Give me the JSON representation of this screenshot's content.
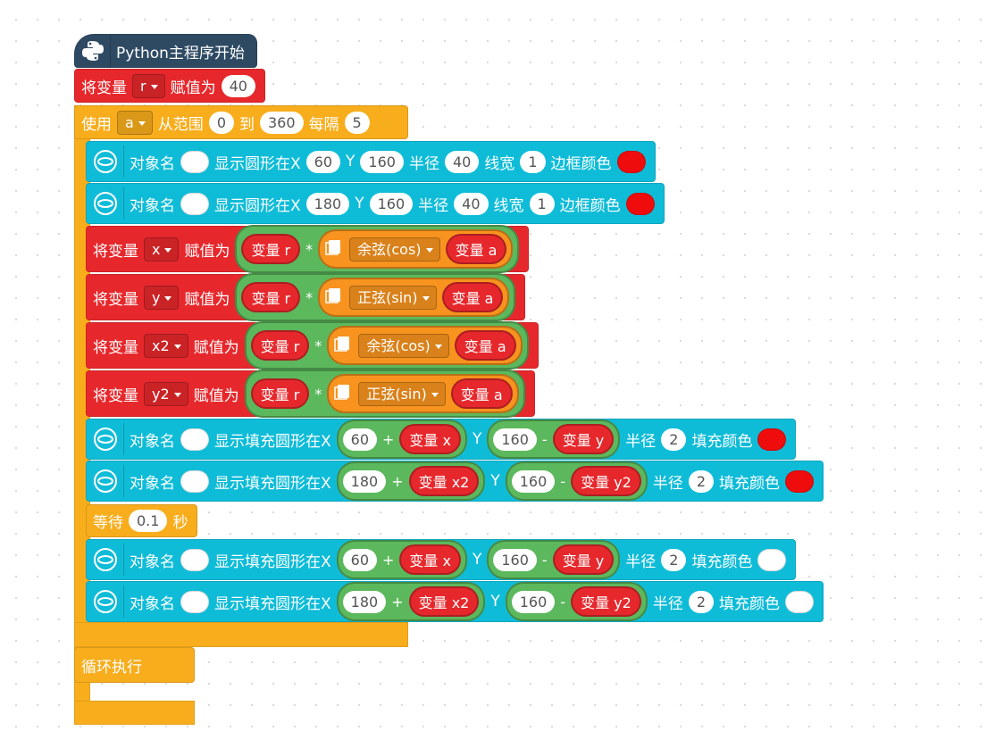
{
  "blocks": [
    {
      "color": "#2e4a63",
      "parts": [
        {
          "label": "Python主程序开始"
        }
      ]
    },
    {
      "color": "#e6282c",
      "parts": [
        {
          "label": "将变量"
        },
        {
          "dropdown": "r"
        },
        {
          "label": "赋值为"
        },
        {
          "number": 40
        }
      ]
    },
    {
      "color": "#f8ad1c",
      "parts": [
        {
          "label": "使用"
        },
        {
          "dropdown": "a"
        },
        {
          "label": "从范围"
        },
        {
          "number": 0
        },
        {
          "label": "到"
        },
        {
          "number": 360
        },
        {
          "label": "每隔"
        },
        {
          "number": 5
        }
      ]
    },
    {
      "color": "#0fbcd8",
      "parts": [
        {
          "label": "对象名"
        },
        {
          "slot": "#ffffff"
        },
        {
          "label": "显示圆形在X"
        },
        {
          "number": 60
        },
        {
          "label": "Y"
        },
        {
          "number": 160
        },
        {
          "label": "半径"
        },
        {
          "number": 40
        },
        {
          "label": "线宽"
        },
        {
          "number": 1
        },
        {
          "label": "边框颜色"
        },
        {
          "slot": "#ee0c0c"
        }
      ]
    },
    {
      "color": "#0fbcd8",
      "parts": [
        {
          "label": "对象名"
        },
        {
          "slot": "#ffffff"
        },
        {
          "label": "显示圆形在X"
        },
        {
          "number": 180
        },
        {
          "label": "Y"
        },
        {
          "number": 160
        },
        {
          "label": "半径"
        },
        {
          "number": 40
        },
        {
          "label": "线宽"
        },
        {
          "number": 1
        },
        {
          "label": "边框颜色"
        },
        {
          "slot": "#ee0c0c"
        }
      ]
    },
    {
      "color": "#e6282c",
      "parts": [
        {
          "label": "将变量"
        },
        {
          "dropdown": "x"
        },
        {
          "label": "赋值为"
        },
        {
          "reporter": {
            "color": "#5cb85c",
            "parts": [
              {
                "reporter": {
                  "color": "#e6282c",
                  "parts": [
                    {
                      "label": "变量 r"
                    }
                  ]
                }
              },
              {
                "label": "*"
              },
              {
                "reporter": {
                  "color": "#f7931e",
                  "parts": [
                    {
                      "dropdown": "余弦(cos)"
                    },
                    {
                      "reporter": {
                        "color": "#e6282c",
                        "parts": [
                          {
                            "label": "变量 a"
                          }
                        ]
                      }
                    }
                  ]
                }
              }
            ]
          }
        }
      ]
    },
    {
      "color": "#e6282c",
      "parts": [
        {
          "label": "将变量"
        },
        {
          "dropdown": "y"
        },
        {
          "label": "赋值为"
        },
        {
          "reporter": {
            "color": "#5cb85c",
            "parts": [
              {
                "reporter": {
                  "color": "#e6282c",
                  "parts": [
                    {
                      "label": "变量 r"
                    }
                  ]
                }
              },
              {
                "label": "*"
              },
              {
                "reporter": {
                  "color": "#f7931e",
                  "parts": [
                    {
                      "dropdown": "正弦(sin)"
                    },
                    {
                      "reporter": {
                        "color": "#e6282c",
                        "parts": [
                          {
                            "label": "变量 a"
                          }
                        ]
                      }
                    }
                  ]
                }
              }
            ]
          }
        }
      ]
    },
    {
      "color": "#e6282c",
      "parts": [
        {
          "label": "将变量"
        },
        {
          "dropdown": "x2"
        },
        {
          "label": "赋值为"
        },
        {
          "reporter": {
            "color": "#5cb85c",
            "parts": [
              {
                "reporter": {
                  "color": "#e6282c",
                  "parts": [
                    {
                      "label": "变量 r"
                    }
                  ]
                }
              },
              {
                "label": "*"
              },
              {
                "reporter": {
                  "color": "#f7931e",
                  "parts": [
                    {
                      "dropdown": "余弦(cos)"
                    },
                    {
                      "reporter": {
                        "color": "#e6282c",
                        "parts": [
                          {
                            "label": "变量 a"
                          }
                        ]
                      }
                    }
                  ]
                }
              }
            ]
          }
        }
      ]
    },
    {
      "color": "#e6282c",
      "parts": [
        {
          "label": "将变量"
        },
        {
          "dropdown": "y2"
        },
        {
          "label": "赋值为"
        },
        {
          "reporter": {
            "color": "#5cb85c",
            "parts": [
              {
                "reporter": {
                  "color": "#e6282c",
                  "parts": [
                    {
                      "label": "变量 r"
                    }
                  ]
                }
              },
              {
                "label": "*"
              },
              {
                "reporter": {
                  "color": "#f7931e",
                  "parts": [
                    {
                      "dropdown": "正弦(sin)"
                    },
                    {
                      "reporter": {
                        "color": "#e6282c",
                        "parts": [
                          {
                            "label": "变量 a"
                          }
                        ]
                      }
                    }
                  ]
                }
              }
            ]
          }
        }
      ]
    },
    {
      "color": "#0fbcd8",
      "parts": [
        {
          "label": "对象名"
        },
        {
          "slot": "#ffffff"
        },
        {
          "label": "显示填充圆形在X"
        },
        {
          "reporter": {
            "color": "#5cb85c",
            "parts": [
              {
                "number": 60
              },
              {
                "label": "+"
              },
              {
                "reporter": {
                  "color": "#e6282c",
                  "parts": [
                    {
                      "label": "变量 x"
                    }
                  ]
                }
              }
            ]
          }
        },
        {
          "label": "Y"
        },
        {
          "reporter": {
            "color": "#5cb85c",
            "parts": [
              {
                "number": 160
              },
              {
                "label": "-"
              },
              {
                "reporter": {
                  "color": "#e6282c",
                  "parts": [
                    {
                      "label": "变量 y"
                    }
                  ]
                }
              }
            ]
          }
        },
        {
          "label": "半径"
        },
        {
          "number": 2
        },
        {
          "label": "填充颜色"
        },
        {
          "slot": "#ee0c0c"
        }
      ]
    },
    {
      "color": "#0fbcd8",
      "parts": [
        {
          "label": "对象名"
        },
        {
          "slot": "#ffffff"
        },
        {
          "label": "显示填充圆形在X"
        },
        {
          "reporter": {
            "color": "#5cb85c",
            "parts": [
              {
                "number": 180
              },
              {
                "label": "+"
              },
              {
                "reporter": {
                  "color": "#e6282c",
                  "parts": [
                    {
                      "label": "变量 x2"
                    }
                  ]
                }
              }
            ]
          }
        },
        {
          "label": "Y"
        },
        {
          "reporter": {
            "color": "#5cb85c",
            "parts": [
              {
                "number": 160
              },
              {
                "label": "-"
              },
              {
                "reporter": {
                  "color": "#e6282c",
                  "parts": [
                    {
                      "label": "变量 y2"
                    }
                  ]
                }
              }
            ]
          }
        },
        {
          "label": "半径"
        },
        {
          "number": 2
        },
        {
          "label": "填充颜色"
        },
        {
          "slot": "#ee0c0c"
        }
      ]
    },
    {
      "color": "#f8ad1c",
      "parts": [
        {
          "label": "等待"
        },
        {
          "number": 0.1
        },
        {
          "label": "秒"
        }
      ]
    },
    {
      "color": "#0fbcd8",
      "parts": [
        {
          "label": "对象名"
        },
        {
          "slot": "#ffffff"
        },
        {
          "label": "显示填充圆形在X"
        },
        {
          "reporter": {
            "color": "#5cb85c",
            "parts": [
              {
                "number": 60
              },
              {
                "label": "+"
              },
              {
                "reporter": {
                  "color": "#e6282c",
                  "parts": [
                    {
                      "label": "变量 x"
                    }
                  ]
                }
              }
            ]
          }
        },
        {
          "label": "Y"
        },
        {
          "reporter": {
            "color": "#5cb85c",
            "parts": [
              {
                "number": 160
              },
              {
                "label": "-"
              },
              {
                "reporter": {
                  "color": "#e6282c",
                  "parts": [
                    {
                      "label": "变量 y"
                    }
                  ]
                }
              }
            ]
          }
        },
        {
          "label": "半径"
        },
        {
          "number": 2
        },
        {
          "label": "填充颜色"
        },
        {
          "slot": "#ffffff"
        }
      ]
    },
    {
      "color": "#0fbcd8",
      "parts": [
        {
          "label": "对象名"
        },
        {
          "slot": "#ffffff"
        },
        {
          "label": "显示填充圆形在X"
        },
        {
          "reporter": {
            "color": "#5cb85c",
            "parts": [
              {
                "number": 180
              },
              {
                "label": "+"
              },
              {
                "reporter": {
                  "color": "#e6282c",
                  "parts": [
                    {
                      "label": "变量 x2"
                    }
                  ]
                }
              }
            ]
          }
        },
        {
          "label": "Y"
        },
        {
          "reporter": {
            "color": "#5cb85c",
            "parts": [
              {
                "number": 160
              },
              {
                "label": "-"
              },
              {
                "reporter": {
                  "color": "#e6282c",
                  "parts": [
                    {
                      "label": "变量 y2"
                    }
                  ]
                }
              }
            ]
          }
        },
        {
          "label": "半径"
        },
        {
          "number": 2
        },
        {
          "label": "填充颜色"
        },
        {
          "slot": "#ffffff"
        }
      ]
    },
    {
      "color": "#f8ad1c",
      "parts": [
        {
          "label": "循环执行"
        }
      ]
    }
  ]
}
